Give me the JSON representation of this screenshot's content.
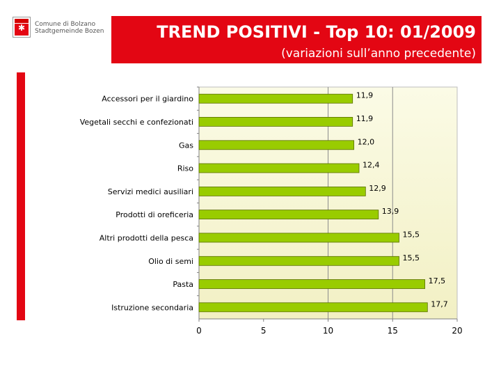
{
  "logo": {
    "line1": "Comune di Bolzano",
    "line2": "Stadtgemeinde Bozen",
    "icon": "coat-of-arms-icon",
    "star": "✱"
  },
  "header": {
    "title": "TREND POSITIVI - Top 10: 01/2009",
    "subtitle": "(variazioni sull’anno precedente)"
  },
  "colors": {
    "brand_red": "#e30613",
    "bar_fill": "#99cc00",
    "plot_gradient_top": "#fbfbe6",
    "plot_gradient_bottom": "#f2f0c4"
  },
  "chart_data": {
    "type": "bar",
    "orientation": "horizontal",
    "title": "",
    "xlabel": "",
    "ylabel": "",
    "xlim": [
      0,
      20
    ],
    "x_ticks": [
      "0",
      "5",
      "10",
      "15",
      "20"
    ],
    "grid": "vertical lines at 10 and 15",
    "legend": "none",
    "categories": [
      "Accessori per il giardino",
      "Vegetali secchi e confezionati",
      "Gas",
      "Riso",
      "Servizi medici ausiliari",
      "Prodotti di oreficeria",
      "Altri prodotti della pesca",
      "Olio di semi",
      "Pasta",
      "Istruzione secondaria"
    ],
    "values": [
      11.9,
      11.9,
      12.0,
      12.4,
      12.9,
      13.9,
      15.5,
      15.5,
      17.5,
      17.7
    ],
    "data_labels": [
      "11,9",
      "11,9",
      "12,0",
      "12,4",
      "12,9",
      "13,9",
      "15,5",
      "15,5",
      "17,5",
      "17,7"
    ]
  }
}
